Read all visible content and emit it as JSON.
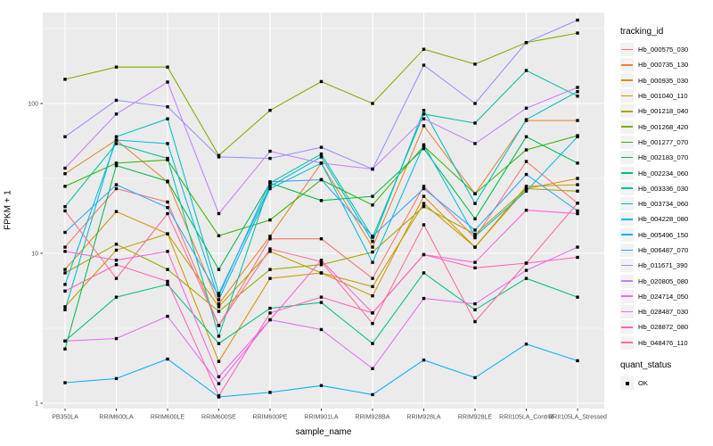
{
  "chart_data": {
    "type": "line",
    "title": "",
    "xlabel": "sample_name",
    "ylabel": "FPKM + 1",
    "y_scale": "log10",
    "ylim": [
      0.92,
      400
    ],
    "grid": "on",
    "panel_bg": "#EBEBEB",
    "grid_color": "#FFFFFF",
    "tick_label_color": "#4D4D4D",
    "point_color": "#000000",
    "point_shape": "filled-square",
    "y_ticks": [
      {
        "value": 1,
        "label": "1"
      },
      {
        "value": 10,
        "label": "10"
      },
      {
        "value": 100,
        "label": "100"
      }
    ],
    "y_minor_ticks": [
      3.162,
      31.62,
      316.2
    ],
    "categories": [
      "PB350LA",
      "RRIM600LA",
      "RRIM600LE",
      "RRIM600SE",
      "RRIM600PE",
      "RRIM901LA",
      "RRIM928BA",
      "RRIM928LA",
      "RRIM928LE",
      "RRII105LA_Control",
      "RRII105LA_Stressed"
    ],
    "legend": {
      "title": "tracking_id",
      "position": "right"
    },
    "quant_status": {
      "title": "quant_status",
      "items": [
        {
          "label": "OK",
          "marker": "black-square"
        }
      ]
    },
    "series": [
      {
        "name": "Hb_000575_030",
        "color": "#F8766D",
        "values": [
          11,
          27,
          22,
          3.3,
          12.5,
          12.5,
          6.8,
          28,
          12.7,
          41,
          21.6
        ]
      },
      {
        "name": "Hb_000735_130",
        "color": "#EA8331",
        "values": [
          34,
          57,
          30,
          4.6,
          13,
          40,
          11,
          71,
          25,
          77,
          77
        ]
      },
      {
        "name": "Hb_000935_030",
        "color": "#D89000",
        "values": [
          7.8,
          19,
          13.5,
          1.9,
          6.8,
          7.4,
          5.2,
          24,
          11,
          27,
          31.6
        ]
      },
      {
        "name": "Hb_001040_110",
        "color": "#C09B00",
        "values": [
          4.4,
          10.5,
          13.5,
          4.4,
          10.3,
          7.4,
          6.0,
          21.5,
          11,
          28,
          28.7
        ]
      },
      {
        "name": "Hb_001218_040",
        "color": "#A3A500",
        "values": [
          7.4,
          11.5,
          7.8,
          4.1,
          7.8,
          8.4,
          10.2,
          20.5,
          13.4,
          27,
          26
        ]
      },
      {
        "name": "Hb_001268_420",
        "color": "#7CAE00",
        "values": [
          145,
          175,
          175,
          45,
          90,
          140,
          100,
          230,
          183,
          255,
          295
        ]
      },
      {
        "name": "Hb_001277_070",
        "color": "#39B600",
        "values": [
          28,
          40,
          42,
          13.1,
          16.7,
          31,
          21,
          52,
          25,
          49,
          61
        ]
      },
      {
        "name": "Hb_002183_070",
        "color": "#00BB4E",
        "values": [
          2.3,
          38.5,
          30.3,
          7.8,
          29.5,
          22.5,
          24,
          50,
          17,
          60,
          40
        ]
      },
      {
        "name": "Hb_002234_060",
        "color": "#00BF7D",
        "values": [
          2.6,
          5.1,
          6.2,
          2.5,
          4.3,
          4.7,
          2.5,
          7.4,
          4.2,
          6.8,
          5.1
        ]
      },
      {
        "name": "Hb_003336_030",
        "color": "#00C1A3",
        "values": [
          20.5,
          54,
          43,
          2.8,
          29.5,
          46,
          12.8,
          85,
          74,
          166,
          112
        ]
      },
      {
        "name": "Hb_003734_060",
        "color": "#00BFC4",
        "values": [
          4.2,
          60,
          79,
          5.4,
          28,
          44,
          12,
          90,
          21.5,
          78,
          120
        ]
      },
      {
        "name": "Hb_004228_080",
        "color": "#00BAE0",
        "values": [
          6.2,
          57,
          54,
          4.9,
          27,
          40,
          8.7,
          53,
          13,
          26,
          60
        ]
      },
      {
        "name": "Hb_005496_150",
        "color": "#00B0F6",
        "values": [
          1.37,
          1.46,
          1.97,
          1.1,
          1.18,
          1.31,
          1.14,
          1.94,
          1.48,
          2.48,
          1.92
        ]
      },
      {
        "name": "Hb_006487_070",
        "color": "#35A2FF",
        "values": [
          13.8,
          28.7,
          20.2,
          5.2,
          30,
          31,
          13,
          27,
          14.3,
          33.6,
          19.2
        ]
      },
      {
        "name": "Hb_011671_390",
        "color": "#9590FF",
        "values": [
          60,
          105,
          95,
          44,
          43,
          51,
          36.5,
          180,
          100,
          255,
          360
        ]
      },
      {
        "name": "Hb_020805_080",
        "color": "#C77CFF",
        "values": [
          37,
          85,
          139,
          18.4,
          48,
          40,
          36.5,
          79,
          54,
          93,
          128
        ]
      },
      {
        "name": "Hb_024714_050",
        "color": "#E76BF3",
        "values": [
          2.6,
          2.7,
          3.8,
          1.35,
          3.6,
          3.1,
          1.7,
          5.0,
          4.6,
          7.7,
          11
        ]
      },
      {
        "name": "Hb_028487_030",
        "color": "#FA62DB",
        "values": [
          10.3,
          9.0,
          10.3,
          1.5,
          3.6,
          9.0,
          4.0,
          9.8,
          8.7,
          19.4,
          18.4
        ]
      },
      {
        "name": "Hb_028872_080",
        "color": "#FF62BC",
        "values": [
          5.6,
          8.4,
          6.5,
          1.12,
          4.0,
          5.1,
          4.0,
          9.8,
          8.0,
          8.6,
          9.4
        ]
      },
      {
        "name": "Hb_048476_110",
        "color": "#FF6A98",
        "values": [
          19.2,
          6.8,
          18.4,
          3.3,
          10.7,
          8.8,
          3.4,
          15.5,
          3.5,
          8.6,
          21.6
        ]
      }
    ]
  }
}
